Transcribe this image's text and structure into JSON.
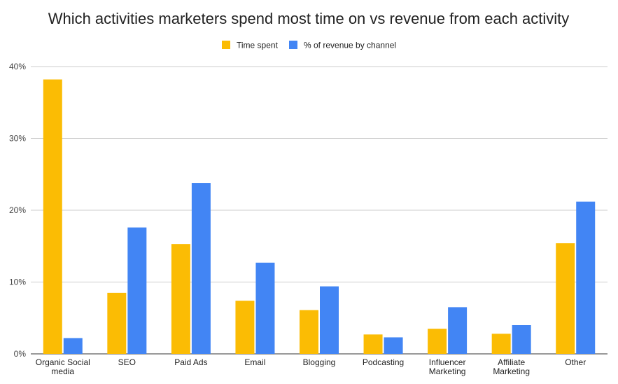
{
  "chart_data": {
    "type": "bar",
    "title": "Which activities marketers spend most time on vs revenue from each activity",
    "categories": [
      [
        "Organic Social",
        "media"
      ],
      [
        "SEO"
      ],
      [
        "Paid Ads"
      ],
      [
        "Email"
      ],
      [
        "Blogging"
      ],
      [
        "Podcasting"
      ],
      [
        "Influencer",
        "Marketing"
      ],
      [
        "Affiliate",
        "Marketing"
      ],
      [
        "Other"
      ]
    ],
    "series": [
      {
        "name": "Time spent",
        "color": "#FBBC04",
        "values": [
          38.2,
          8.5,
          15.3,
          7.4,
          6.1,
          2.7,
          3.5,
          2.8,
          15.4
        ]
      },
      {
        "name": "% of revenue by channel",
        "color": "#4285F4",
        "values": [
          2.2,
          17.6,
          23.8,
          12.7,
          9.4,
          2.3,
          6.5,
          4.0,
          21.2
        ]
      }
    ],
    "ylim": [
      0,
      40
    ],
    "yticks": [
      0,
      10,
      20,
      30,
      40
    ],
    "ytick_labels": [
      "0%",
      "10%",
      "20%",
      "30%",
      "40%"
    ],
    "xlabel": "",
    "ylabel": "",
    "grid": true,
    "legend_position": "top-center"
  }
}
